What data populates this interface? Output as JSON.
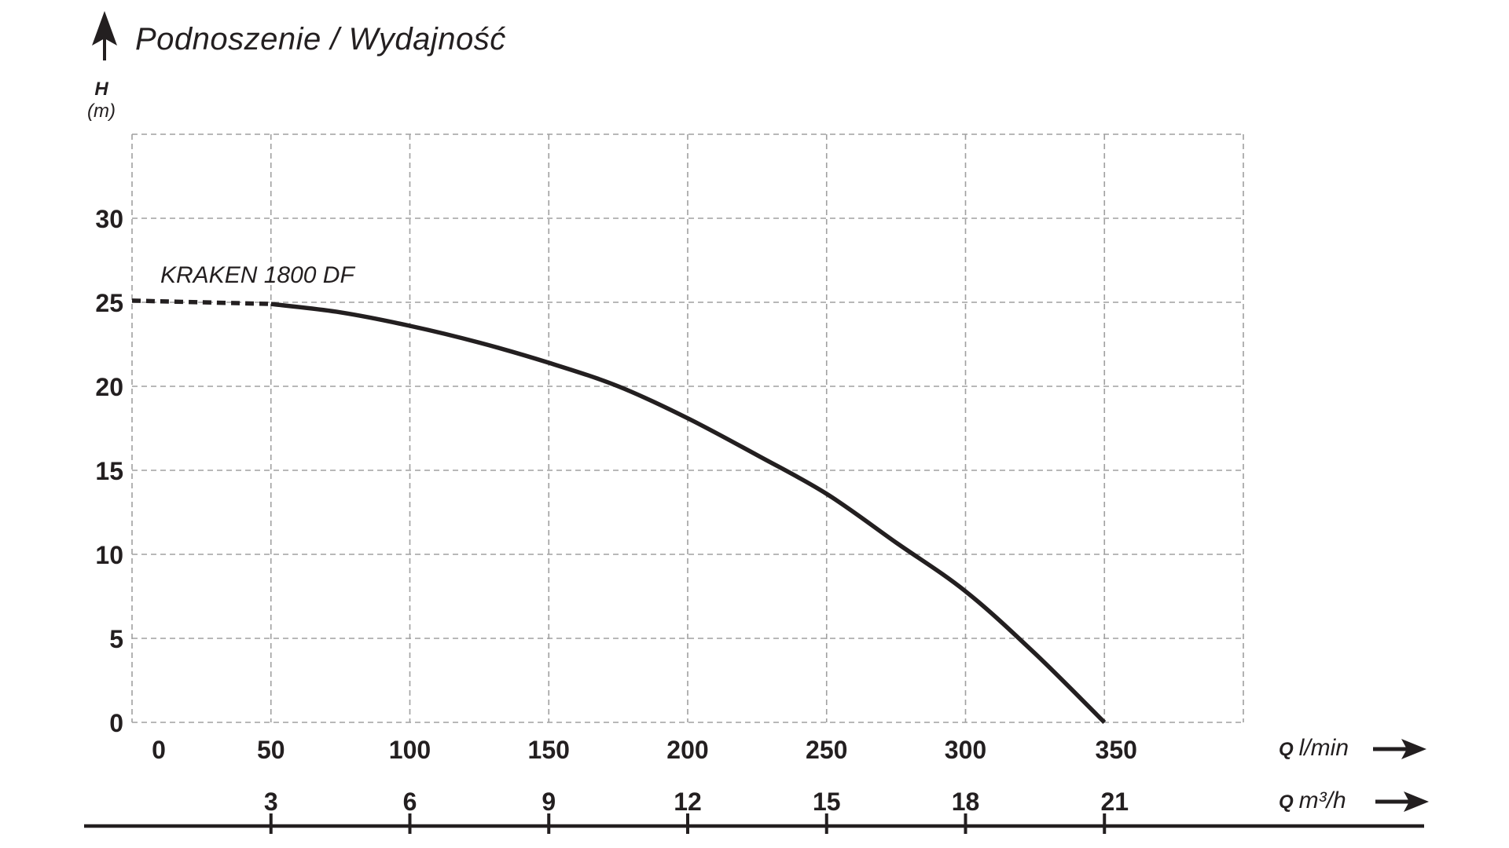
{
  "colors": {
    "ink": "#231f20",
    "grid": "#a0a0a0",
    "curve": "#231f20"
  },
  "header": {
    "title": "Podnoszenie / Wydajność"
  },
  "chart_data": {
    "type": "line",
    "title": "Podnoszenie / Wydajność",
    "y_axis": {
      "symbol": "H",
      "unit": "(m)",
      "ticks": [
        0,
        5,
        10,
        15,
        20,
        25,
        30
      ]
    },
    "x_axes": [
      {
        "symbol": "Q",
        "unit": "l/min",
        "ticks": [
          0,
          50,
          100,
          150,
          200,
          250,
          300,
          350
        ]
      },
      {
        "symbol": "Q",
        "unit": "m³/h",
        "ticks": [
          3,
          6,
          9,
          12,
          15,
          18,
          21
        ]
      }
    ],
    "xlim": [
      0,
      400
    ],
    "ylim": [
      0,
      35
    ],
    "grid": {
      "x_step": 50,
      "y_step": 5,
      "style": "dashed"
    },
    "legend_position": "above-curve-left",
    "series": [
      {
        "name": "KRAKEN 1800 DF",
        "x_unit": "l/min",
        "y_unit": "m",
        "dashed_until_q": 50,
        "points": [
          [
            0,
            25.1
          ],
          [
            25,
            25.0
          ],
          [
            50,
            24.9
          ],
          [
            75,
            24.4
          ],
          [
            100,
            23.6
          ],
          [
            125,
            22.6
          ],
          [
            150,
            21.4
          ],
          [
            175,
            20.0
          ],
          [
            200,
            18.1
          ],
          [
            225,
            15.9
          ],
          [
            250,
            13.6
          ],
          [
            275,
            10.7
          ],
          [
            300,
            7.8
          ],
          [
            325,
            4.1
          ],
          [
            350,
            0
          ]
        ]
      }
    ]
  }
}
